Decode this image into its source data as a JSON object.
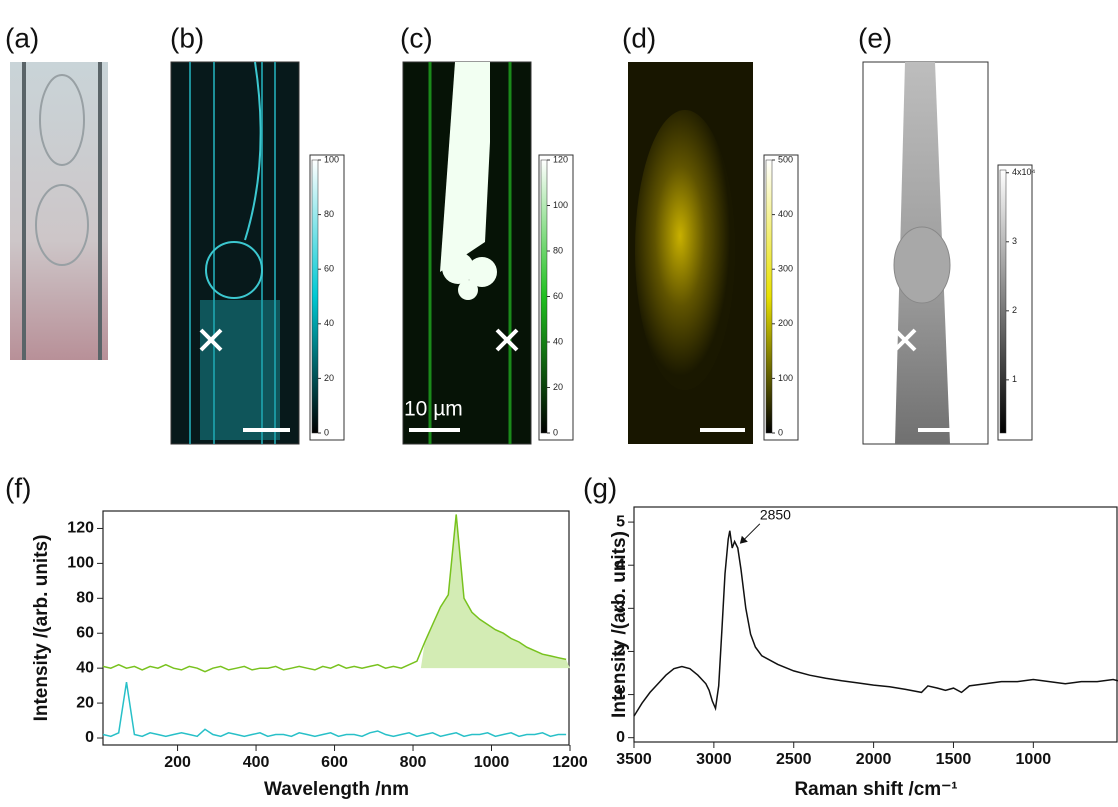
{
  "panels": [
    {
      "label": "(a)"
    },
    {
      "label": "(b)",
      "colorbar": {
        "lim": [
          0,
          100
        ],
        "ticks": [
          0,
          20,
          40,
          60,
          80,
          100
        ],
        "cmap": [
          "#000000",
          "#00c8d2",
          "#ffffff"
        ]
      }
    },
    {
      "label": "(c)",
      "scale_label": "10 µm",
      "colorbar": {
        "lim": [
          0,
          120
        ],
        "ticks": [
          0,
          20,
          40,
          60,
          80,
          100,
          120
        ],
        "cmap": [
          "#000000",
          "#20c020",
          "#ffffff"
        ]
      }
    },
    {
      "label": "(d)",
      "colorbar": {
        "lim": [
          0,
          500
        ],
        "ticks": [
          0,
          100,
          200,
          300,
          400,
          500
        ],
        "cmap": [
          "#000000",
          "#e8e000",
          "#ffffff"
        ]
      }
    },
    {
      "label": "(e)",
      "colorbar": {
        "lim": [
          2300,
          40400
        ],
        "ticks": [
          {
            "value": 10000,
            "label": "1"
          },
          {
            "value": 20000,
            "label": "2"
          },
          {
            "value": 30000,
            "label": "3"
          },
          {
            "value": 40000,
            "label": "4x10⁴"
          }
        ],
        "cmap": [
          "#000000",
          "#808080",
          "#ffffff"
        ]
      }
    }
  ],
  "chart_data": [
    {
      "type": "line",
      "label": "(f)",
      "xlabel": "Wavelength /nm",
      "ylabel": "Intensity /(arb. units)",
      "xlim": [
        10,
        1200
      ],
      "ylim": [
        -4,
        130
      ],
      "xticks": [
        200,
        400,
        600,
        800,
        1000,
        1200
      ],
      "yticks": [
        0,
        20,
        40,
        60,
        80,
        100,
        120
      ],
      "x": [
        10,
        30,
        50,
        70,
        90,
        110,
        130,
        150,
        170,
        190,
        210,
        230,
        250,
        270,
        290,
        310,
        330,
        350,
        370,
        390,
        410,
        430,
        450,
        470,
        490,
        510,
        530,
        550,
        570,
        590,
        610,
        630,
        650,
        670,
        690,
        710,
        730,
        750,
        770,
        790,
        810,
        830,
        850,
        870,
        890,
        910,
        930,
        950,
        970,
        990,
        1010,
        1030,
        1050,
        1070,
        1090,
        1110,
        1130,
        1150,
        1170,
        1190
      ],
      "fill_xlim": [
        820,
        1200
      ],
      "fill_baseline": 40,
      "fill_color": "#d3ecb4",
      "series": [
        {
          "color": "#78c21e",
          "values": [
            41,
            40,
            42,
            40,
            41,
            39,
            41,
            40,
            42,
            40,
            39,
            41,
            40,
            38,
            40,
            41,
            39,
            40,
            41,
            39,
            40,
            40,
            41,
            39,
            40,
            41,
            40,
            39,
            41,
            40,
            42,
            40,
            41,
            40,
            41,
            42,
            40,
            41,
            40,
            42,
            44,
            55,
            65,
            75,
            82,
            128,
            80,
            72,
            68,
            65,
            62,
            60,
            57,
            55,
            52,
            50,
            48,
            47,
            46,
            45
          ],
          "fill": true
        },
        {
          "color": "#28c0c8",
          "values": [
            2,
            1,
            3,
            32,
            2,
            1,
            3,
            2,
            1,
            2,
            3,
            2,
            1,
            5,
            2,
            1,
            3,
            2,
            1,
            2,
            3,
            1,
            2,
            2,
            1,
            3,
            2,
            1,
            2,
            3,
            1,
            2,
            2,
            1,
            3,
            4,
            2,
            1,
            2,
            3,
            1,
            2,
            3,
            1,
            2,
            3,
            1,
            2,
            2,
            3,
            1,
            2,
            3,
            1,
            2,
            2,
            3,
            1,
            2,
            2
          ]
        }
      ]
    },
    {
      "type": "line",
      "label": "(g)",
      "xlabel": "Raman shift /cm⁻¹",
      "ylabel": "Intensity /(arb. units)",
      "xlim": [
        3500,
        470
      ],
      "ylim": [
        -0.1,
        5.35
      ],
      "xticks": [
        3500,
        3000,
        2500,
        2000,
        1500,
        1000
      ],
      "yticks": [
        0,
        1,
        2,
        3,
        4,
        5
      ],
      "x": [
        3500,
        3450,
        3400,
        3350,
        3300,
        3250,
        3200,
        3150,
        3100,
        3050,
        3030,
        3010,
        2990,
        2970,
        2950,
        2930,
        2910,
        2900,
        2885,
        2870,
        2850,
        2830,
        2800,
        2770,
        2740,
        2700,
        2600,
        2500,
        2400,
        2300,
        2200,
        2100,
        2000,
        1900,
        1800,
        1700,
        1660,
        1600,
        1550,
        1500,
        1450,
        1400,
        1300,
        1200,
        1100,
        1000,
        900,
        800,
        700,
        600,
        500,
        470
      ],
      "series": [
        {
          "color": "#111111",
          "values": [
            0.5,
            0.8,
            1.05,
            1.25,
            1.45,
            1.6,
            1.65,
            1.6,
            1.45,
            1.25,
            1.1,
            0.85,
            0.68,
            1.2,
            2.5,
            3.8,
            4.6,
            4.8,
            4.4,
            4.55,
            4.4,
            3.9,
            3.0,
            2.4,
            2.1,
            1.9,
            1.7,
            1.55,
            1.45,
            1.38,
            1.32,
            1.27,
            1.22,
            1.18,
            1.12,
            1.05,
            1.2,
            1.15,
            1.1,
            1.15,
            1.05,
            1.2,
            1.25,
            1.3,
            1.3,
            1.35,
            1.3,
            1.25,
            1.3,
            1.3,
            1.35,
            1.32
          ]
        }
      ],
      "annotations": [
        {
          "text": "2850",
          "x": 2850,
          "y": 4.45
        }
      ]
    }
  ]
}
